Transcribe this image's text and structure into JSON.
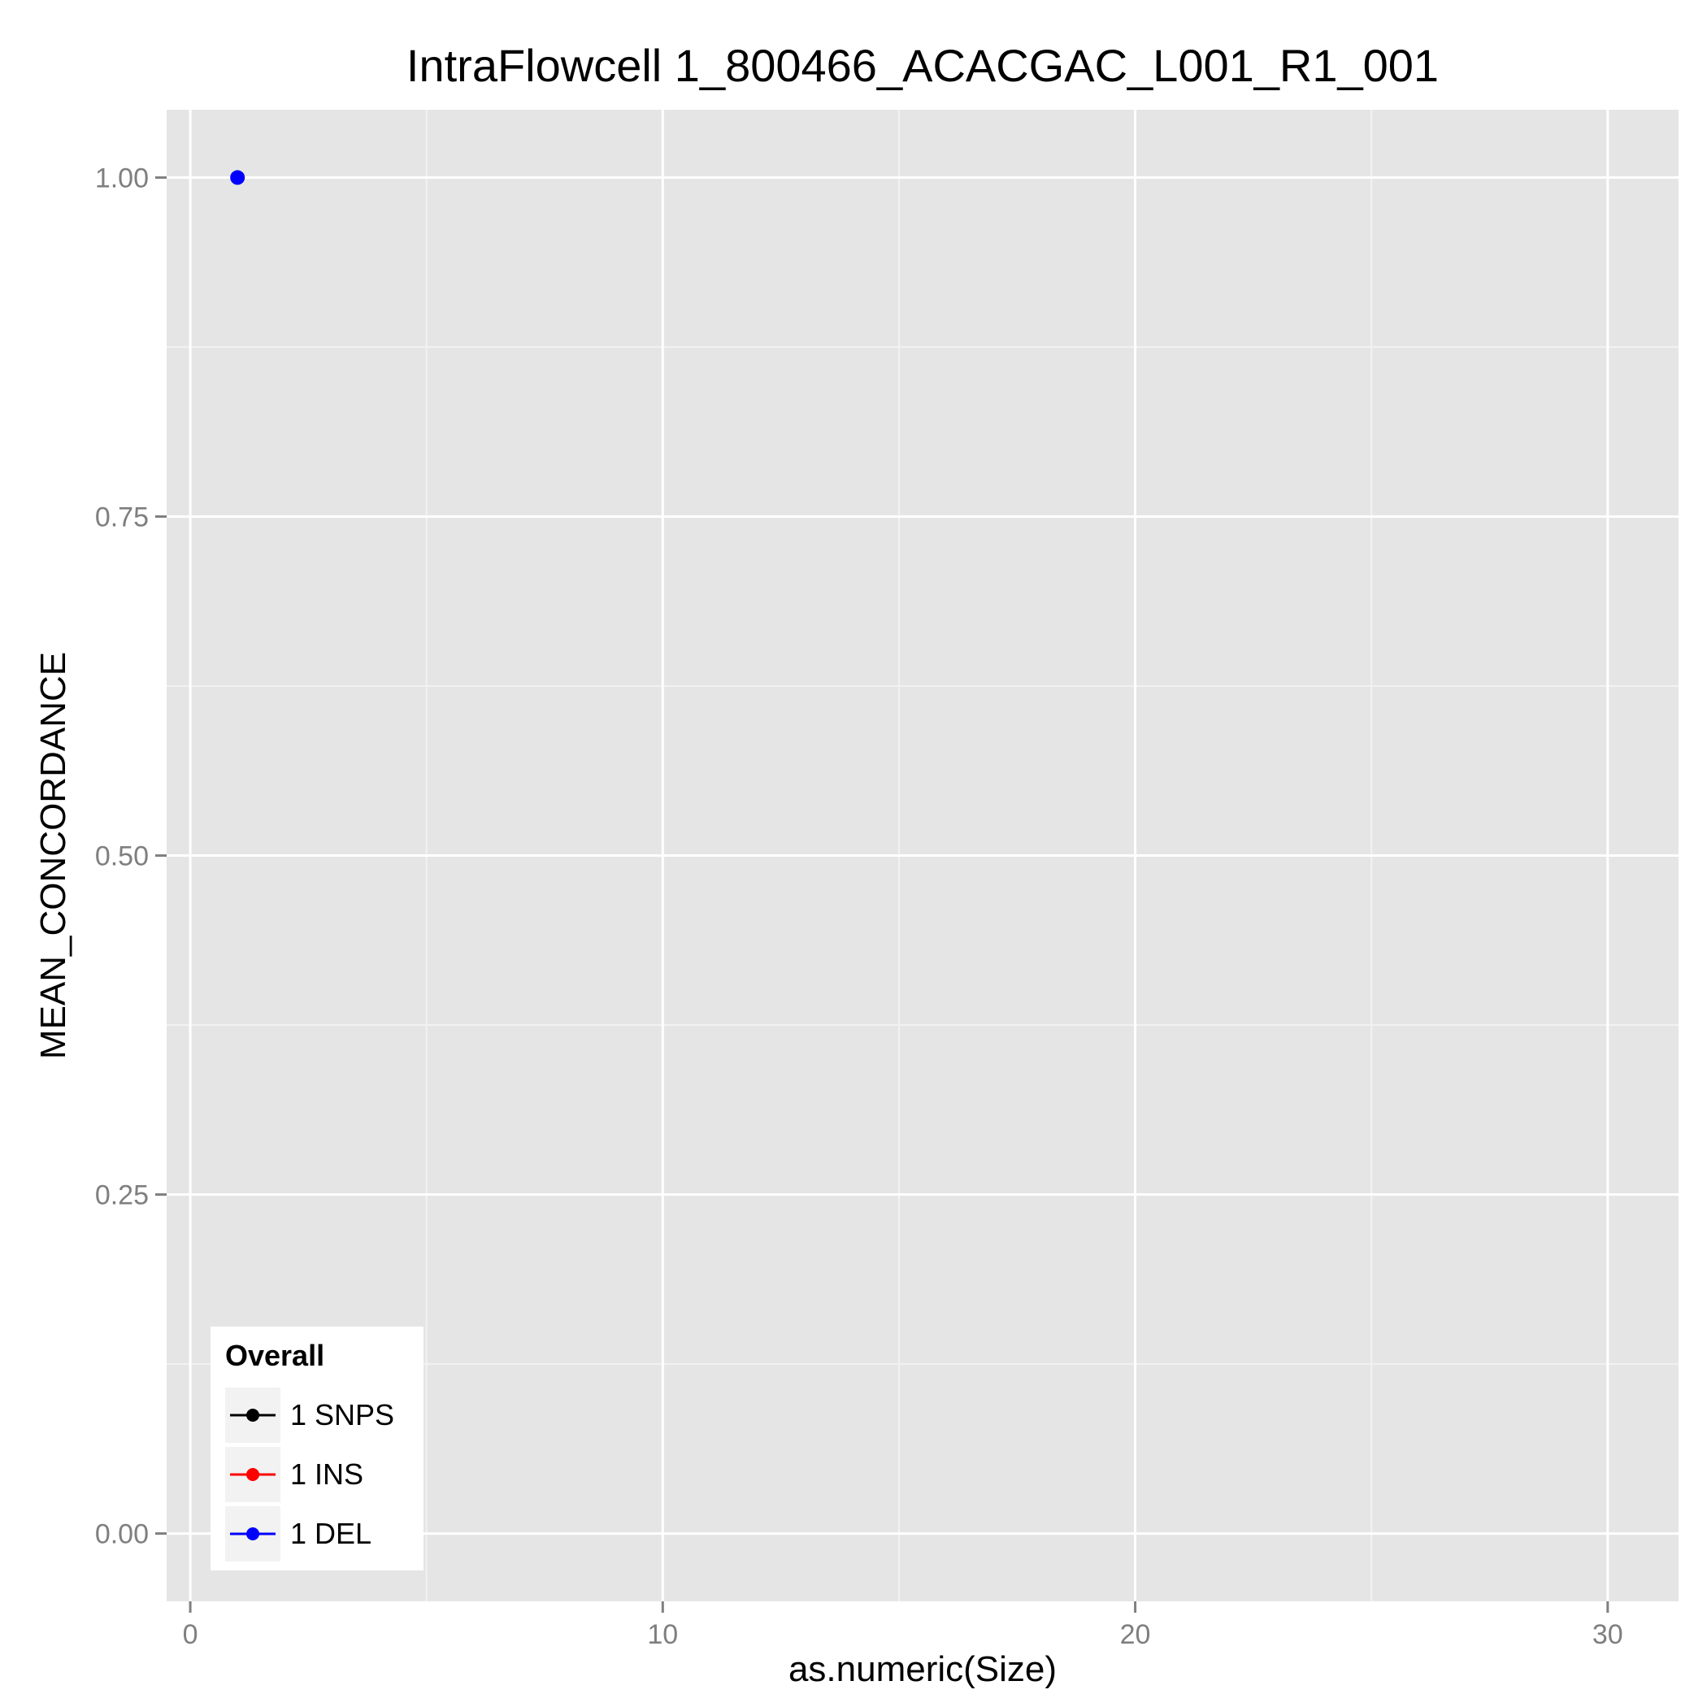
{
  "chart_data": {
    "type": "line",
    "title": "IntraFlowcell 1_800466_ACACGAC_L001_R1_001",
    "xlabel": "as.numeric(Size)",
    "ylabel": "MEAN_CONCORDANCE",
    "xlim": [
      -0.5,
      31.5
    ],
    "ylim": [
      -0.05,
      1.05
    ],
    "x_ticks": [
      0,
      10,
      20,
      30
    ],
    "x_tick_labels": [
      "0",
      "10",
      "20",
      "30"
    ],
    "y_ticks": [
      0,
      0.25,
      0.5,
      0.75,
      1
    ],
    "y_tick_labels": [
      "0.00",
      "0.25",
      "0.50",
      "0.75",
      "1.00"
    ],
    "grid": true,
    "legend": {
      "title": "Overall",
      "position": "bottom-left"
    },
    "series": [
      {
        "name": "1 SNPS",
        "color": "#000000",
        "points": []
      },
      {
        "name": "1 INS",
        "color": "#ff0000",
        "points": []
      },
      {
        "name": "1 DEL",
        "color": "#0000ff",
        "points": [
          [
            1,
            1.0
          ]
        ]
      }
    ]
  }
}
